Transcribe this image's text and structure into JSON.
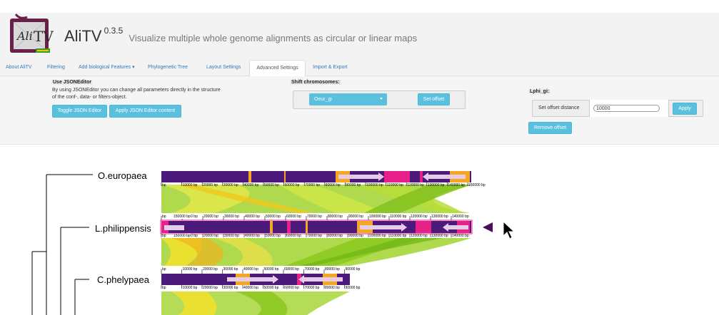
{
  "app": {
    "name": "AliTV",
    "version": "0.3.5",
    "tagline": "Visualize multiple whole genome alignments as circular or linear maps"
  },
  "tabs": [
    {
      "label": "About AliTV"
    },
    {
      "label": "Filtering"
    },
    {
      "label": "Add biological Features ▾"
    },
    {
      "label": "Phylogenetic Tree"
    },
    {
      "label": "Layout Settings"
    },
    {
      "label": "Advanced Settings"
    },
    {
      "label": "Import & Export"
    }
  ],
  "active_tab": "Advanced Settings",
  "advanced": {
    "json_editor": {
      "heading": "Use JSONEditor",
      "description_line1": "By using JSONEditor you can change all parameters directly in the structure",
      "description_line2": "of the conf-, data- or filters-object.",
      "toggle_label": "Toggle JSON Editor",
      "apply_label": "Apply JSON Editor content"
    },
    "shift": {
      "heading": "Shift chromosomes:",
      "selected": "Oeur_gi",
      "set_offset_label": "Set offset"
    },
    "offset": {
      "heading": "Lphi_gi:",
      "field_label": "Set offset distance",
      "value": "10000",
      "apply_label": "Apply",
      "remove_label": "Remove offset"
    }
  },
  "genomes": [
    {
      "name": "O.europaea"
    },
    {
      "name": "L.philippensis"
    },
    {
      "name": "C.phelypaea"
    }
  ],
  "colors": {
    "chromosome": "#4b1a7a",
    "feature_pink": "#e8218a",
    "feature_orange": "#f5a623",
    "feature_arrow": "#e6cce6",
    "link_green": "#8cc81e",
    "link_yellow": "#f3e12a",
    "accent": "#5bc0de",
    "active_marker": "#4b0f5a"
  },
  "ticks": {
    "O.europaea": [
      "bp",
      "10000 bp",
      "20000 bp",
      "30000 bp",
      "40000 bp",
      "50000 bp",
      "60000 bp",
      "70000 bp",
      "80000 bp",
      "90000 bp",
      "100000 bp",
      "110000 bp",
      "120000 bp",
      "130000 bp",
      "140000 bp",
      "150000 bp"
    ],
    "L.philippensis": [
      "bp",
      "10000 bp",
      "20000 bp",
      "30000 bp",
      "40000 bp",
      "50000 bp",
      "60000 bp",
      "70000 bp",
      "80000 bp",
      "90000 bp",
      "100000 bp",
      "110000 bp",
      "120000 bp",
      "130000 bp",
      "140000 bp"
    ],
    "L.philippensis_wrap_left": "150000 bp",
    "C.phelypaea": [
      "bp",
      "10000 bp",
      "20000 bp",
      "30000 bp",
      "40000 bp",
      "50000 bp",
      "60000 bp",
      "70000 bp",
      "80000 bp",
      "90000 bp"
    ]
  }
}
